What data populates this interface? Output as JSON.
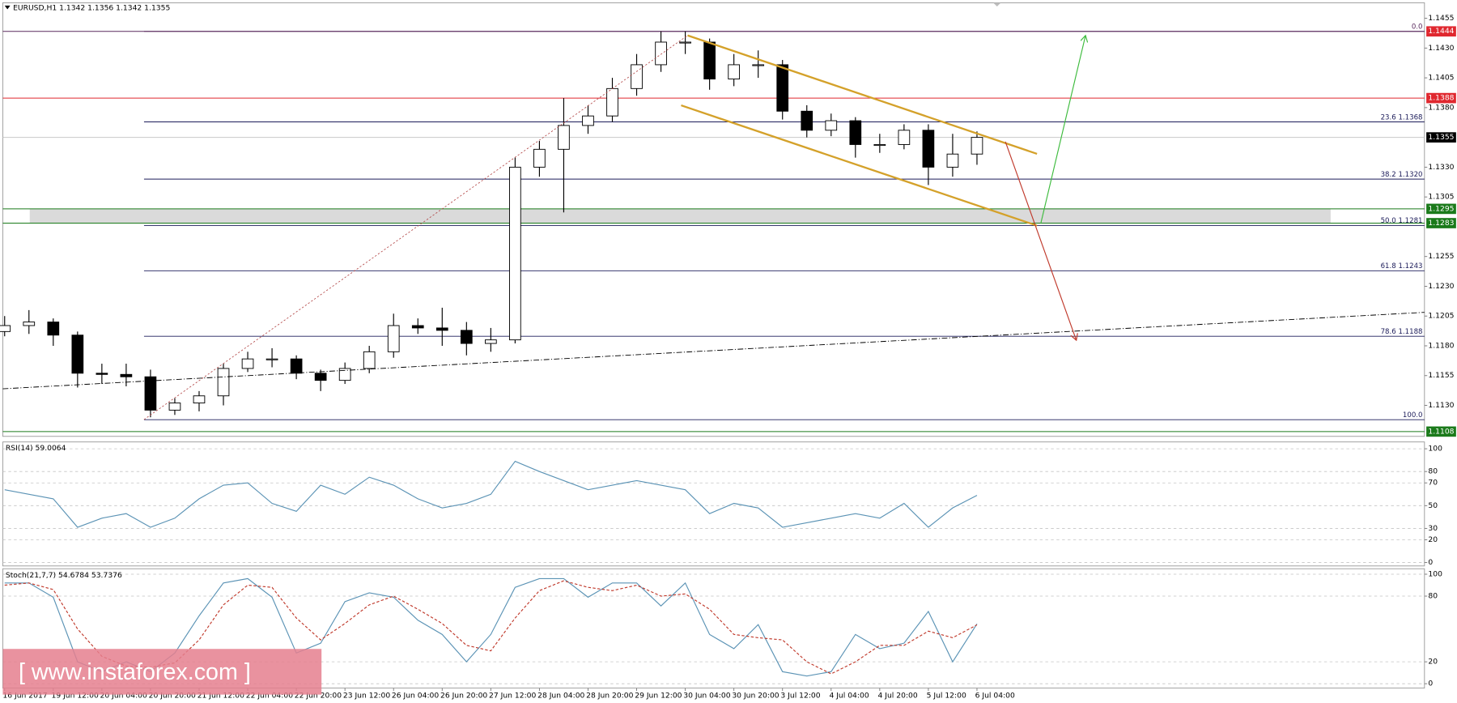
{
  "title": "EURUSD,H1  1.1342 1.1356 1.1342 1.1355",
  "watermark": "[ www.instaforex.com ]",
  "chart_data": [
    {
      "type": "candlestick",
      "categories": [
        "16 Jun 2017",
        null,
        "19 Jun 12:00",
        null,
        "20 Jun 04:00",
        null,
        "20 Jun 20:00",
        null,
        "21 Jun 12:00",
        null,
        "22 Jun 04:00",
        null,
        "22 Jun 20:00",
        null,
        "23 Jun 12:00",
        null,
        "26 Jun 04:00",
        null,
        "26 Jun 20:00",
        null,
        "27 Jun 12:00",
        null,
        "28 Jun 04:00",
        null,
        "28 Jun 20:00",
        null,
        "29 Jun 12:00",
        null,
        "30 Jun 04:00",
        null,
        "30 Jun 20:00",
        null,
        "3 Jul 12:00",
        null,
        "4 Jul 04:00",
        null,
        "4 Jul 20:00",
        null,
        "5 Jul 12:00",
        null,
        "6 Jul 04:00"
      ],
      "open": [
        1.1192,
        1.1197,
        1.12,
        1.1189,
        1.1157,
        1.1156,
        1.1154,
        1.1126,
        1.1132,
        1.1138,
        1.1161,
        1.1169,
        1.1169,
        1.1157,
        1.1151,
        1.1161,
        1.1175,
        1.1197,
        1.1195,
        1.1193,
        1.1182,
        1.1185,
        1.133,
        1.1345,
        1.1365,
        1.1373,
        1.1396,
        1.1416,
        1.1435,
        1.1435,
        1.1404,
        1.1416,
        1.1416,
        1.1377,
        1.1361,
        1.1369,
        1.1349,
        1.1349,
        1.1361,
        1.133,
        1.1341
      ],
      "high": [
        1.1205,
        1.121,
        1.1203,
        1.1192,
        1.1165,
        1.1165,
        1.116,
        1.1136,
        1.1142,
        1.1165,
        1.1175,
        1.1178,
        1.1172,
        1.116,
        1.1166,
        1.118,
        1.1207,
        1.1203,
        1.1212,
        1.12,
        1.1195,
        1.1338,
        1.1352,
        1.1388,
        1.1382,
        1.1405,
        1.1425,
        1.1444,
        1.1444,
        1.1438,
        1.1425,
        1.1428,
        1.142,
        1.1382,
        1.1375,
        1.1372,
        1.1358,
        1.1366,
        1.1366,
        1.1358,
        1.136
      ],
      "low": [
        1.1188,
        1.119,
        1.118,
        1.1145,
        1.1148,
        1.1146,
        1.112,
        1.1122,
        1.1125,
        1.113,
        1.1158,
        1.1162,
        1.1152,
        1.1142,
        1.1148,
        1.1157,
        1.117,
        1.119,
        1.118,
        1.1172,
        1.1175,
        1.1182,
        1.1322,
        1.1292,
        1.1358,
        1.1368,
        1.139,
        1.141,
        1.1425,
        1.1395,
        1.1398,
        1.1405,
        1.137,
        1.1355,
        1.1356,
        1.1338,
        1.1342,
        1.1345,
        1.1315,
        1.1322,
        1.1332
      ],
      "close": [
        1.1197,
        1.12,
        1.1189,
        1.1157,
        1.1156,
        1.1154,
        1.1126,
        1.1132,
        1.1138,
        1.1161,
        1.1169,
        1.1169,
        1.1157,
        1.1151,
        1.1161,
        1.1175,
        1.1197,
        1.1195,
        1.1193,
        1.1182,
        1.1185,
        1.133,
        1.1345,
        1.1365,
        1.1373,
        1.1396,
        1.1416,
        1.1435,
        1.1435,
        1.1404,
        1.1416,
        1.1416,
        1.1377,
        1.1361,
        1.1369,
        1.1349,
        1.1349,
        1.1361,
        1.133,
        1.1341,
        1.1355
      ],
      "up_color": "#ffffff",
      "down_color": "#000000",
      "ylim": [
        1.1104,
        1.1468
      ],
      "yticks": [
        {
          "value": 1.1455,
          "label": "1.1455"
        },
        {
          "value": 1.143,
          "label": "1.1430"
        },
        {
          "value": 1.1405,
          "label": "1.1405"
        },
        {
          "value": 1.138,
          "label": "1.1380"
        },
        {
          "value": 1.133,
          "label": "1.1330"
        },
        {
          "value": 1.1305,
          "label": "1.1305"
        },
        {
          "value": 1.1255,
          "label": "1.1255"
        },
        {
          "value": 1.123,
          "label": "1.1230"
        },
        {
          "value": 1.1205,
          "label": "1.1205"
        },
        {
          "value": 1.118,
          "label": "1.1180"
        },
        {
          "value": 1.1155,
          "label": "1.1155"
        },
        {
          "value": 1.113,
          "label": "1.1130"
        }
      ],
      "levels": [
        {
          "value": 1.1444,
          "label": "0.0",
          "color": "#5a2a5e"
        },
        {
          "value": 1.1368,
          "label": "23.6 1.1368",
          "color": "#1c1c5a"
        },
        {
          "value": 1.132,
          "label": "38.2 1.1320",
          "color": "#1c1c5a"
        },
        {
          "value": 1.1281,
          "label": "50.0 1.1281",
          "color": "#1c1c5a"
        },
        {
          "value": 1.1243,
          "label": "61.8 1.1243",
          "color": "#1c1c5a"
        },
        {
          "value": 1.1188,
          "label": "78.6 1.1188",
          "color": "#1c1c5a"
        },
        {
          "value": 1.1118,
          "label": "100.0",
          "color": "#1c1c5a"
        }
      ],
      "zone": {
        "from": 1.1283,
        "to": 1.1295,
        "color": "#dadada"
      },
      "price_labels": [
        {
          "value": 1.1444,
          "color": "#e0282f",
          "line_color": "#5a2a5e"
        },
        {
          "value": 1.1388,
          "color": "#e0282f",
          "line_color": "#e0282f"
        },
        {
          "value": 1.1355,
          "color": "#000000",
          "line_color": "#c8c8c8"
        },
        {
          "value": 1.1295,
          "color": "#1a7a1a",
          "line_color": "#1a7a1a"
        },
        {
          "value": 1.1283,
          "color": "#1a7a1a",
          "line_color": "#1a7a1a"
        },
        {
          "value": 1.1108,
          "color": "#1a7a1a",
          "line_color": "#1a7a1a"
        }
      ]
    },
    {
      "type": "line",
      "title": "RSI(14) 59.0064",
      "series": [
        {
          "color": "#5b93b5",
          "dashed": false,
          "values": [
            64,
            60,
            56,
            31,
            39,
            43,
            31,
            39,
            56,
            68,
            70,
            52,
            45,
            68,
            60,
            75,
            68,
            56,
            48,
            52,
            60,
            89,
            80,
            72,
            64,
            68,
            72,
            68,
            64,
            43,
            52,
            48,
            31,
            35,
            39,
            43,
            39,
            52,
            31,
            48,
            59.0064
          ]
        }
      ],
      "ylim": [
        -3,
        106
      ],
      "yticks": [
        100,
        80,
        70,
        50,
        30,
        20,
        0
      ]
    },
    {
      "type": "line",
      "title": "Stoch(21,7,7) 54.6784 53.7376",
      "series": [
        {
          "color": "#5b93b5",
          "dashed": false,
          "values": [
            92,
            92,
            79,
            20,
            11,
            20,
            11,
            28,
            62,
            92,
            96,
            79,
            28,
            37,
            75,
            83,
            79,
            58,
            45,
            20,
            45,
            88,
            96,
            96,
            79,
            92,
            92,
            71,
            92,
            45,
            32,
            54,
            11,
            7,
            11,
            45,
            32,
            37,
            66,
            20,
            54.6784
          ]
        },
        {
          "color": "#c0392b",
          "dashed": true,
          "values": [
            90,
            92,
            86,
            50,
            25,
            16,
            15,
            19,
            40,
            72,
            90,
            88,
            60,
            40,
            55,
            72,
            80,
            68,
            55,
            35,
            30,
            60,
            85,
            94,
            88,
            85,
            90,
            80,
            82,
            68,
            45,
            42,
            40,
            20,
            9,
            20,
            35,
            35,
            48,
            42,
            53.7376
          ]
        }
      ],
      "ylim": [
        -4,
        105
      ],
      "yticks": [
        100,
        80,
        20,
        0
      ]
    }
  ]
}
